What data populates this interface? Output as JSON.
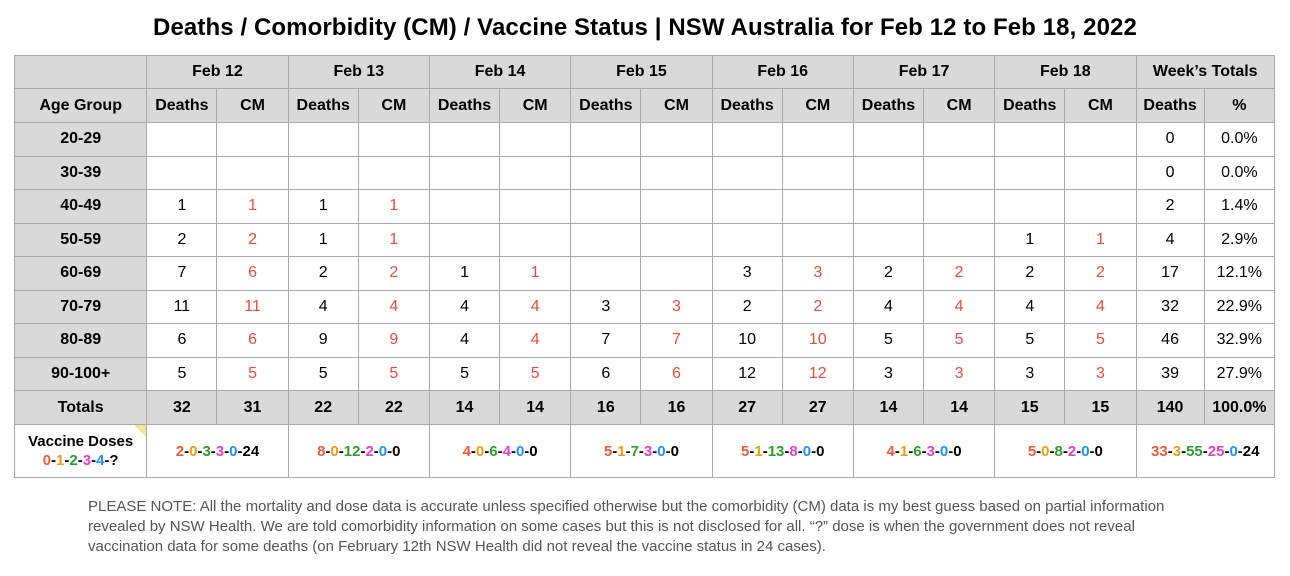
{
  "title": "Deaths / Comorbidity (CM) / Vaccine Status | NSW Australia for Feb 12 to Feb 18, 2022",
  "header": {
    "dates": [
      "Feb 12",
      "Feb 13",
      "Feb 14",
      "Feb 15",
      "Feb 16",
      "Feb 17",
      "Feb 18"
    ],
    "week_totals": "Week’s Totals",
    "age_group": "Age Group",
    "deaths": "Deaths",
    "cm": "CM",
    "pct": "%"
  },
  "rows": [
    {
      "age": "20-29",
      "cells": [
        "",
        "",
        "",
        "",
        "",
        "",
        "",
        "",
        "",
        "",
        "",
        "",
        "",
        ""
      ],
      "total": "0",
      "pct": "0.0%"
    },
    {
      "age": "30-39",
      "cells": [
        "",
        "",
        "",
        "",
        "",
        "",
        "",
        "",
        "",
        "",
        "",
        "",
        "",
        ""
      ],
      "total": "0",
      "pct": "0.0%"
    },
    {
      "age": "40-49",
      "cells": [
        "1",
        "1",
        "1",
        "1",
        "",
        "",
        "",
        "",
        "",
        "",
        "",
        "",
        "",
        ""
      ],
      "total": "2",
      "pct": "1.4%"
    },
    {
      "age": "50-59",
      "cells": [
        "2",
        "2",
        "1",
        "1",
        "",
        "",
        "",
        "",
        "",
        "",
        "",
        "",
        "1",
        "1"
      ],
      "total": "4",
      "pct": "2.9%"
    },
    {
      "age": "60-69",
      "cells": [
        "7",
        "6",
        "2",
        "2",
        "1",
        "1",
        "",
        "",
        "3",
        "3",
        "2",
        "2",
        "2",
        "2"
      ],
      "total": "17",
      "pct": "12.1%"
    },
    {
      "age": "70-79",
      "cells": [
        "11",
        "11",
        "4",
        "4",
        "4",
        "4",
        "3",
        "3",
        "2",
        "2",
        "4",
        "4",
        "4",
        "4"
      ],
      "total": "32",
      "pct": "22.9%"
    },
    {
      "age": "80-89",
      "cells": [
        "6",
        "6",
        "9",
        "9",
        "4",
        "4",
        "7",
        "7",
        "10",
        "10",
        "5",
        "5",
        "5",
        "5"
      ],
      "total": "46",
      "pct": "32.9%"
    },
    {
      "age": "90-100+",
      "cells": [
        "5",
        "5",
        "5",
        "5",
        "5",
        "5",
        "6",
        "6",
        "12",
        "12",
        "3",
        "3",
        "3",
        "3"
      ],
      "total": "39",
      "pct": "27.9%"
    }
  ],
  "totals": {
    "label": "Totals",
    "cells": [
      "32",
      "31",
      "22",
      "22",
      "14",
      "14",
      "16",
      "16",
      "27",
      "27",
      "14",
      "14",
      "15",
      "15"
    ],
    "total": "140",
    "pct": "100.0%"
  },
  "vaccine": {
    "label": "Vaccine Doses",
    "legend": [
      "0",
      "1",
      "2",
      "3",
      "4",
      "?"
    ],
    "days": [
      [
        "2",
        "0",
        "3",
        "3",
        "0",
        "24"
      ],
      [
        "8",
        "0",
        "12",
        "2",
        "0",
        "0"
      ],
      [
        "4",
        "0",
        "6",
        "4",
        "0",
        "0"
      ],
      [
        "5",
        "1",
        "7",
        "3",
        "0",
        "0"
      ],
      [
        "5",
        "1",
        "13",
        "8",
        "0",
        "0"
      ],
      [
        "4",
        "1",
        "6",
        "3",
        "0",
        "0"
      ],
      [
        "5",
        "0",
        "8",
        "2",
        "0",
        "0"
      ]
    ],
    "week": [
      "33",
      "3",
      "55",
      "25",
      "0",
      "24"
    ],
    "separator": "-"
  },
  "colors": {
    "cm_red": "#ea4c3c",
    "header_gray": "#d9d9d9",
    "dose0": "#ef5a3c",
    "dose1": "#f39c12",
    "dose2": "#2ca02c",
    "dose3": "#e83ec8",
    "dose4": "#1e90ff",
    "dose_unknown": "#000000"
  },
  "note": "PLEASE NOTE: All the mortality and dose data is accurate unless specified otherwise but the comorbidity (CM) data is my best guess based on partial information revealed by NSW Health. We are told comorbidity information on some cases but this is not disclosed for all. “?” dose is when the government does not reveal vaccination data for some deaths (on February 12th NSW Health did not reveal the vaccine status in 24 cases)."
}
